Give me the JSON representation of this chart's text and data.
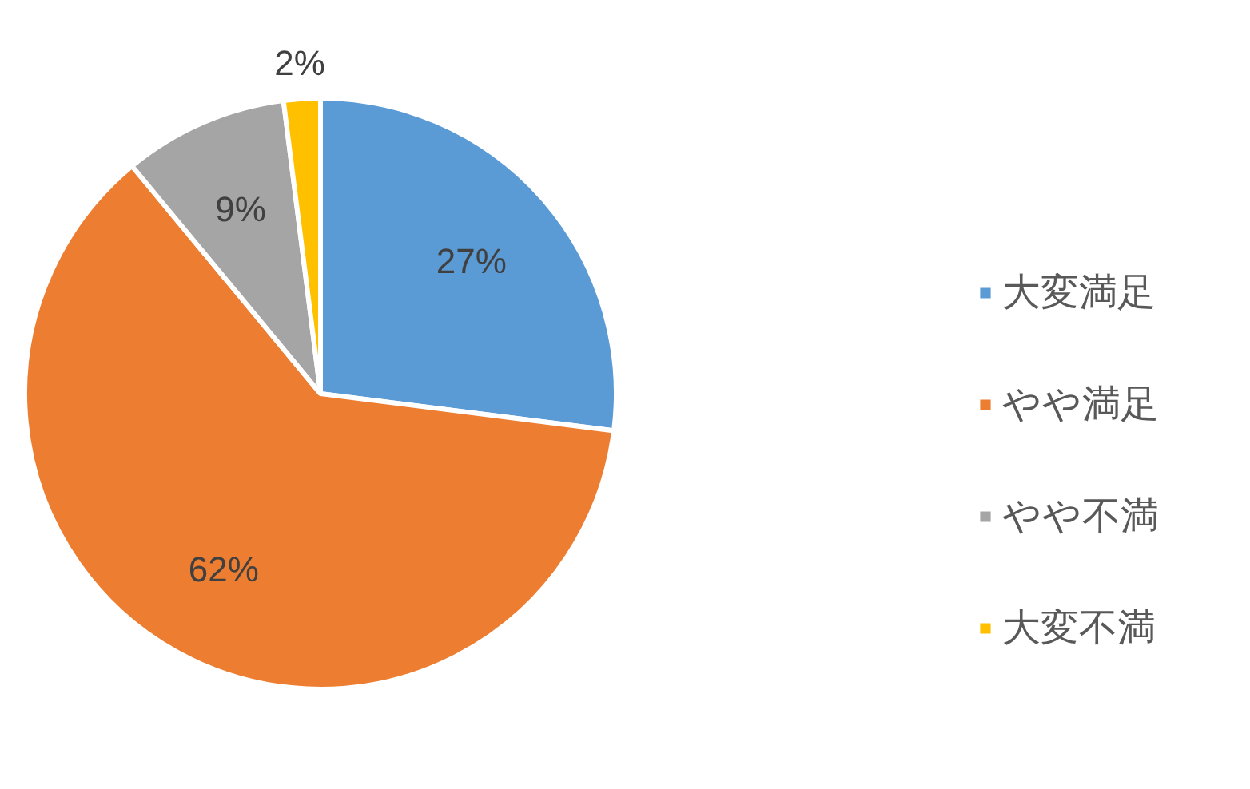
{
  "chart_data": {
    "type": "pie",
    "categories": [
      "大変満足",
      "やや満足",
      "やや不満",
      "大変不満"
    ],
    "values": [
      27,
      62,
      9,
      2
    ],
    "colors": [
      "#5b9bd5",
      "#ed7d31",
      "#a5a5a5",
      "#ffc000"
    ],
    "value_labels": [
      "27%",
      "62%",
      "9%",
      "2%"
    ],
    "legend": "right"
  }
}
